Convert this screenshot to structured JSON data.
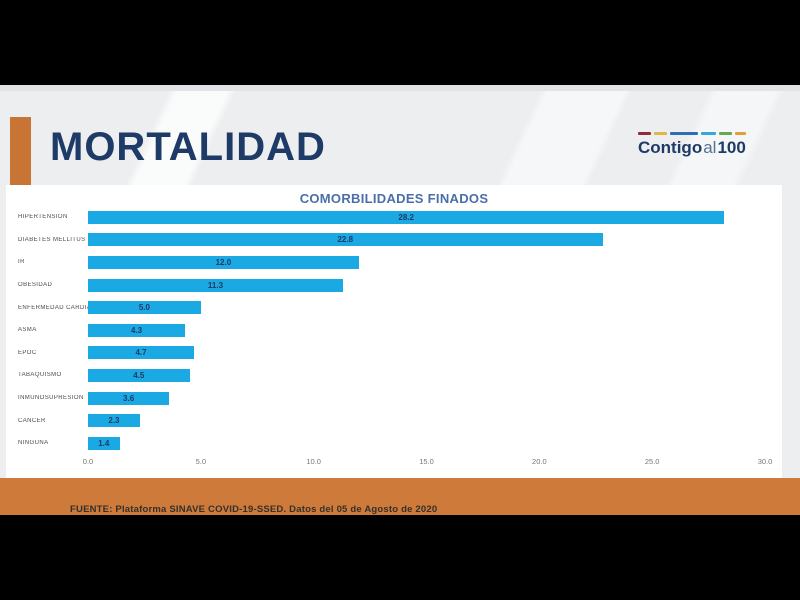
{
  "slide": {
    "title": "MORTALIDAD",
    "logo": {
      "word_main": "Contigo",
      "word_mid": "al",
      "word_num": "100",
      "dash_colors": [
        "#93293a",
        "#dfb742",
        "#2e6db5",
        "#38a6d8",
        "#67a850",
        "#dfa03f"
      ]
    },
    "footer_source": "FUENTE: Plataforma SINAVE COVID-19-SSED. Datos del 05 de Agosto de 2020"
  },
  "chart_data": {
    "type": "bar",
    "orientation": "horizontal",
    "title": "COMORBILIDADES FINADOS",
    "categories": [
      "HIPERTENSION",
      "DIABETES MELLITUS",
      "IR",
      "OBESIDAD",
      "ENFERMEDAD CARDIACA",
      "ASMA",
      "EPOC",
      "TABAQUISMO",
      "INMUNOSUPRESION",
      "CANCER",
      "NINGUNA"
    ],
    "values": [
      28.2,
      22.8,
      12.0,
      11.3,
      5.0,
      4.3,
      4.7,
      4.5,
      3.6,
      2.3,
      1.4
    ],
    "xlabel": "",
    "ylabel": "",
    "xlim": [
      0,
      30
    ],
    "x_ticks": [
      "0.0",
      "5.0",
      "10.0",
      "15.0",
      "20.0",
      "25.0",
      "30.0"
    ],
    "grid": false,
    "legend": false,
    "value_labels_position": "center-inside",
    "bar_color": "#1BA9E3",
    "value_label_color": "#1F3864",
    "title_color": "#4A6FA8"
  },
  "colors": {
    "letterbox": "#000000",
    "slide_bg": "#ECEEF0",
    "panel_bg": "#FFFFFF",
    "accent_orange": "#C87434",
    "footer_orange": "#CE7A3A",
    "title_navy": "#1E3A66"
  }
}
